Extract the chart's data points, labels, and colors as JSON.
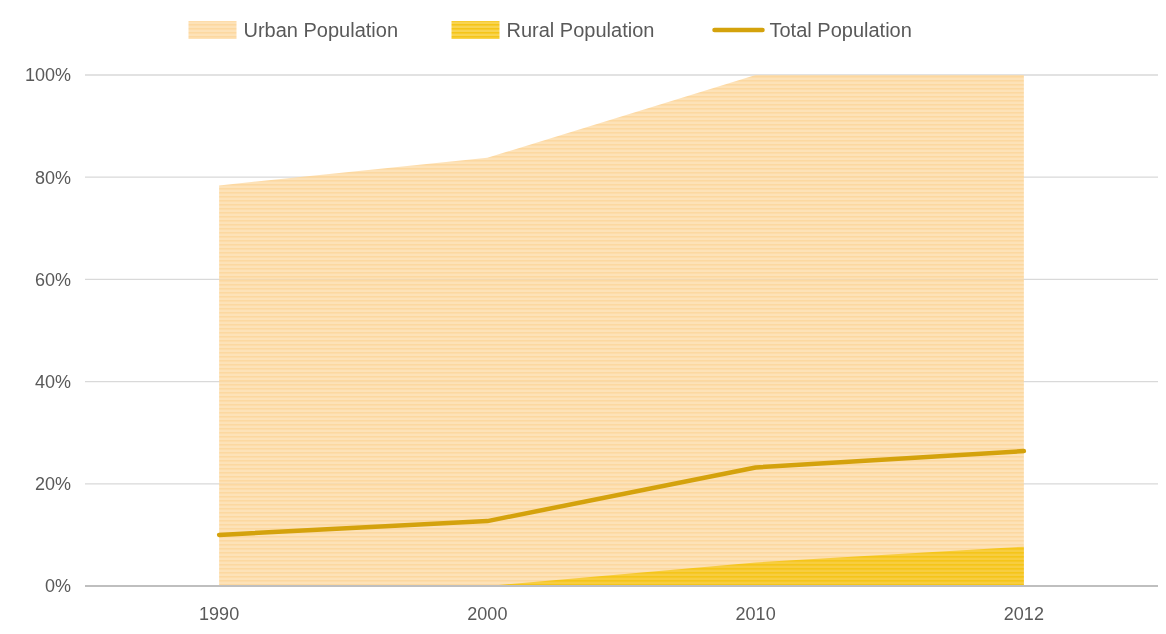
{
  "chart_data": {
    "type": "area",
    "categories": [
      "1990",
      "2000",
      "2010",
      "2012"
    ],
    "series": [
      {
        "name": "Urban Population",
        "color": "#fcd8a0",
        "values": [
          78.4,
          83.8,
          100,
          100
        ]
      },
      {
        "name": "Rural Population",
        "color": "#f5c518",
        "values": [
          0,
          0,
          4.6,
          7.7
        ]
      },
      {
        "name": "Total Population",
        "type": "line",
        "color": "#d4a20c",
        "values": [
          10,
          12.7,
          23.2,
          26.4
        ]
      }
    ],
    "ylim": [
      0,
      100
    ],
    "yticks": [
      {
        "value": 0,
        "label": "0%"
      },
      {
        "value": 20,
        "label": "20%"
      },
      {
        "value": 40,
        "label": "40%"
      },
      {
        "value": 60,
        "label": "60%"
      },
      {
        "value": 80,
        "label": "80%"
      },
      {
        "value": 100,
        "label": "100%"
      }
    ],
    "grid": "y",
    "legend": "top"
  }
}
